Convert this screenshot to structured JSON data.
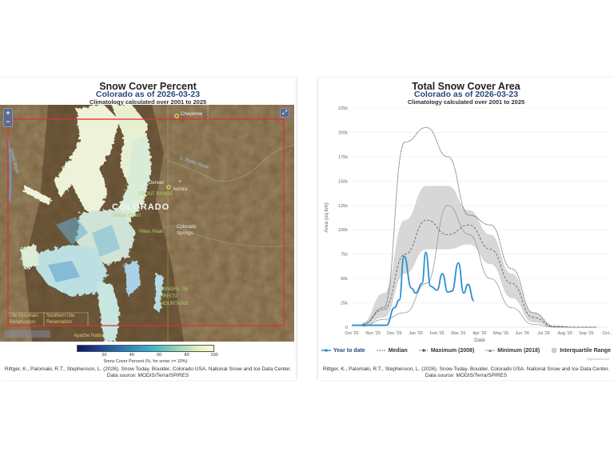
{
  "left_panel": {
    "title": "Snow Cover Percent",
    "subtitle": "Colorado as of 2026-03-23",
    "note": "Climatology calculated over 2001 to 2025",
    "map": {
      "zoom_in": "+",
      "zoom_out": "−",
      "fullscreen": "⤢",
      "labels": {
        "cheyenne": "Cheyenne",
        "platte": "S. Platte River",
        "denver": "Denver",
        "aurora": "Aurora",
        "front_range": "FRONT RANGE",
        "colorado": "COLORADO",
        "mt_elbert": "Mount Elbert",
        "pikes_peak": "Pikes Peak",
        "colorado_springs_1": "Colorado",
        "colorado_springs_2": "Springs",
        "sangre_1": "SANGRE DE",
        "sangre_2": "CRISTO",
        "sangre_3": "MOUNTAINS",
        "ute_mountain_1": "Ute Mountain",
        "ute_mountain_2": "Reservation",
        "southern_ute_1": "Southern Ute",
        "southern_ute_2": "Reservation",
        "jicarilla_1": "Jicarilla",
        "jicarilla_2": "Apache Nation",
        "green_river": "Green River"
      }
    },
    "colorbar": {
      "ticks": [
        "20",
        "40",
        "60",
        "80",
        "100"
      ],
      "label": "Snow Cover Percent (%, for snow >= 10%)"
    },
    "citation_1": "Rittger, K., Palomaki, R.T., Stephenson, L. (2026). Snow Today. Boulder, Colorado USA. National Snow and Ice Data Center.",
    "citation_2": "Data source: MODIS/Terra/SPIRES"
  },
  "right_panel": {
    "title": "Total Snow Cover Area",
    "subtitle": "Colorado as of 2026-03-23",
    "note": "Climatology calculated over 2001 to 2025",
    "legend": [
      {
        "label": "Year to date",
        "color": "#2b8fd0"
      },
      {
        "label": "Median",
        "color": "#777777"
      },
      {
        "label": "Maximum (2008)",
        "color": "#555555"
      },
      {
        "label": "Minimum (2018)",
        "color": "#888888"
      },
      {
        "label": "Interquartile Range",
        "color": "#cccccc"
      }
    ],
    "credit": "Highcharts.com",
    "citation_1": "Rittger, K., Palomaki, R.T., Stephenson, L. (2026). Snow Today. Boulder, Colorado USA. National Snow and Ice Data Center.",
    "citation_2": "Data source: MODIS/Terra/SPIRES"
  },
  "chart_data": {
    "type": "line",
    "title": "Total Snow Cover Area",
    "subtitle": "Colorado as of 2026-03-23",
    "note": "Climatology calculated over 2001 to 2025",
    "xlabel": "Date",
    "ylabel": "Area (sq km)",
    "ylim": [
      0,
      225000
    ],
    "y_ticks": [
      "0",
      "25k",
      "50k",
      "75k",
      "100k",
      "125k",
      "150k",
      "175k",
      "200k",
      "225k"
    ],
    "categories": [
      "Oct '25",
      "Nov '25",
      "Dec '25",
      "Jan '26",
      "Feb '26",
      "Mar '26",
      "Apr '26",
      "May '26",
      "Jun '26",
      "Jul '26",
      "Aug '26",
      "Sep '26",
      "Oct..."
    ],
    "grid": true,
    "legend_position": "bottom",
    "series": [
      {
        "name": "Year to date",
        "x": [
          "Oct 1",
          "Nov 1",
          "Nov 20",
          "Dec 1",
          "Dec 8",
          "Dec 15",
          "Dec 25",
          "Jan 1",
          "Jan 10",
          "Jan 15",
          "Jan 22",
          "Feb 1",
          "Feb 8",
          "Feb 15",
          "Feb 22",
          "Mar 1",
          "Mar 8",
          "Mar 15",
          "Mar 23"
        ],
        "values": [
          2000,
          2000,
          2000,
          20000,
          28000,
          73000,
          40000,
          35000,
          45000,
          77000,
          42000,
          38000,
          55000,
          36000,
          37000,
          66000,
          35000,
          44000,
          27000
        ]
      },
      {
        "name": "Median",
        "months": [
          "Oct",
          "Nov",
          "Dec",
          "Jan",
          "Feb",
          "Mar",
          "Apr",
          "May",
          "Jun",
          "Jul",
          "Aug",
          "Sep"
        ],
        "values": [
          3000,
          18000,
          75000,
          110000,
          95000,
          105000,
          80000,
          45000,
          10000,
          500,
          0,
          0
        ]
      },
      {
        "name": "Maximum (2008)",
        "months": [
          "Oct",
          "Nov",
          "Dec",
          "Jan",
          "Feb",
          "Mar",
          "Apr",
          "May",
          "Jun",
          "Jul",
          "Aug",
          "Sep"
        ],
        "values": [
          3000,
          20000,
          190000,
          205000,
          175000,
          115000,
          105000,
          60000,
          15000,
          1000,
          0,
          0
        ]
      },
      {
        "name": "Minimum (2018)",
        "months": [
          "Oct",
          "Nov",
          "Dec",
          "Jan",
          "Feb",
          "Mar",
          "Apr",
          "May",
          "Jun",
          "Jul",
          "Aug",
          "Sep"
        ],
        "values": [
          1000,
          8000,
          15000,
          45000,
          125000,
          95000,
          50000,
          20000,
          3000,
          0,
          0,
          0
        ]
      },
      {
        "name": "Interquartile Range",
        "months": [
          "Oct",
          "Nov",
          "Dec",
          "Jan",
          "Feb",
          "Mar",
          "Apr",
          "May",
          "Jun",
          "Jul",
          "Aug",
          "Sep"
        ],
        "low": [
          1000,
          10000,
          55000,
          80000,
          80000,
          85000,
          65000,
          30000,
          5000,
          0,
          0,
          0
        ],
        "high": [
          5000,
          35000,
          110000,
          145000,
          145000,
          120000,
          95000,
          55000,
          15000,
          1000,
          0,
          0
        ]
      }
    ]
  }
}
